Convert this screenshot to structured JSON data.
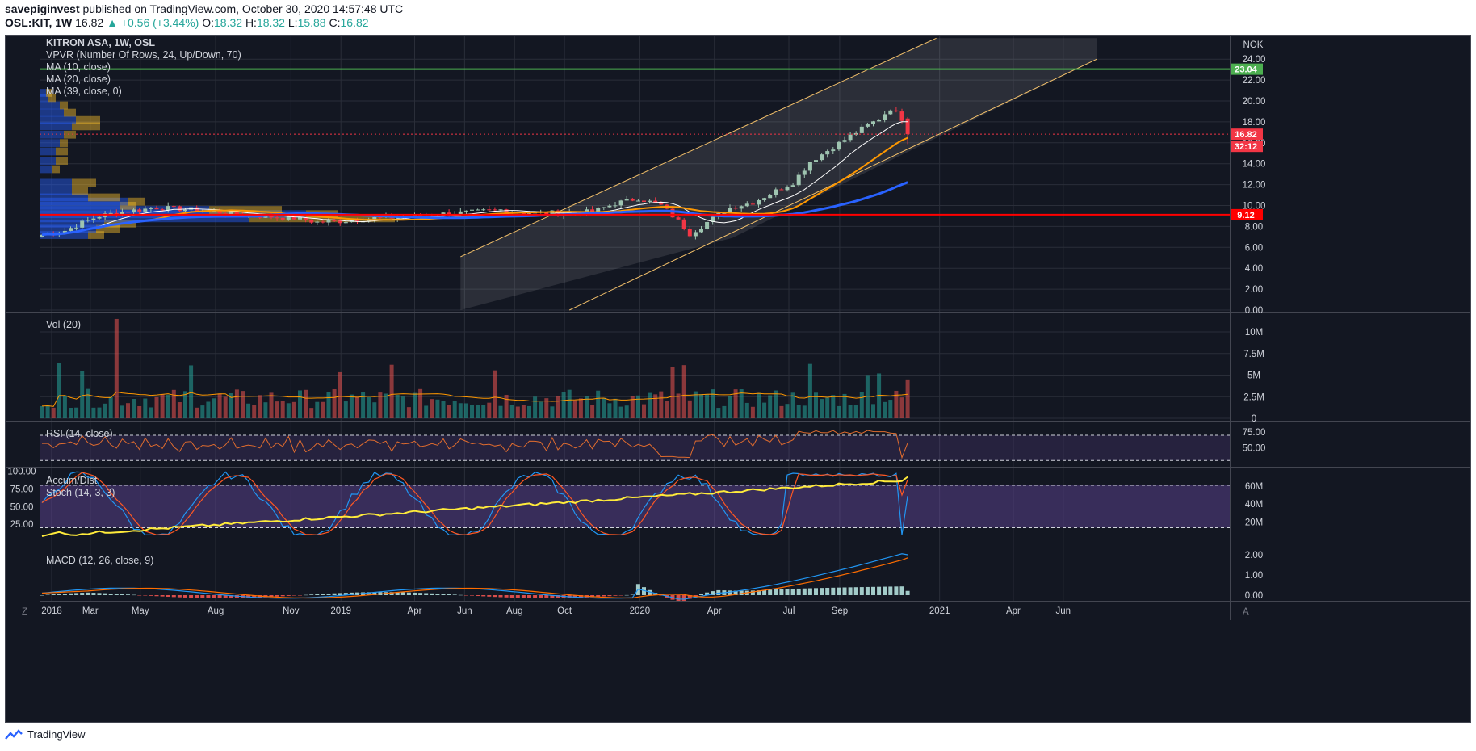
{
  "header": {
    "author": "savepiginvest",
    "published": "published on TradingView.com, October 30, 2020 14:57:48 UTC",
    "symbol": "OSL:KIT, 1W",
    "last": "16.82",
    "change": "▲ +0.56 (+3.44%)",
    "o_label": "O:",
    "o": "18.32",
    "h_label": "H:",
    "h": "18.32",
    "l_label": "L:",
    "l": "15.88",
    "c_label": "C:",
    "c": "16.82"
  },
  "footer": {
    "brand": "TradingView"
  },
  "legend": {
    "title": "KITRON ASA, 1W, OSL",
    "vpvr": "VPVR (Number Of Rows, 24, Up/Down, 70)",
    "ma10": "MA (10, close)",
    "ma20": "MA (20, close)",
    "ma39": "MA (39, close, 0)",
    "vol": "Vol (20)",
    "rsi": "RSI (14, close)",
    "accdist": "Accum/Dist",
    "stoch": "Stoch (14, 3, 3)",
    "macd": "MACD (12, 26, close, 9)"
  },
  "scale_buttons": {
    "left": "Z",
    "right": "A"
  },
  "colors": {
    "background": "#131722",
    "up": "#26a69a",
    "down": "#ef5350",
    "ma10": "#ffffff",
    "ma20": "#ff9800",
    "ma39": "#2962ff",
    "green_line": "#4caf50",
    "red_line": "#ff0000",
    "rsi_bg": "#2a1f44",
    "rsi_line": "#e06c2e",
    "stoch_k": "#2196f3",
    "stoch_d": "#ff5722",
    "accdist": "#ffeb3b",
    "macd": "#2196f3",
    "signal": "#ff6d00"
  },
  "chart_data": {
    "type": "candlestick",
    "symbol": "KITRON ASA",
    "interval": "1W",
    "x_ticks": [
      "2018",
      "Mar",
      "May",
      "Aug",
      "Nov",
      "2019",
      "Apr",
      "Jun",
      "Aug",
      "Oct",
      "2020",
      "Apr",
      "Jul",
      "Sep",
      "2021",
      "Apr",
      "Jun"
    ],
    "price": {
      "currency": "NOK",
      "y_ticks": [
        "0.00",
        "2.00",
        "4.00",
        "6.00",
        "8.00",
        "10.00",
        "12.00",
        "14.00",
        "16.00",
        "18.00",
        "20.00",
        "22.00",
        "24.00"
      ],
      "ylim": [
        0,
        25
      ],
      "last_close": 16.82,
      "countdown": "32:12",
      "resistance": 23.04,
      "support": 9.12,
      "ma39_last": 13.2,
      "channel": {
        "lower": [
          [
            "2019-09-30",
            9.3
          ],
          [
            "2020-03-23",
            6.9
          ],
          [
            "2021-07-12",
            24.0
          ]
        ],
        "upper": [
          [
            "2019-05-27",
            5.1
          ],
          [
            "2020-08-31",
            22.0
          ],
          [
            "2020-12-28",
            26.0
          ]
        ]
      }
    },
    "volume": {
      "y_ticks": [
        "0",
        "2.5M",
        "5M",
        "7.5M",
        "10M"
      ],
      "peak": 11.5,
      "last": 4.5,
      "unit": "M"
    },
    "rsi": {
      "y_ticks": [
        "50.00",
        "75.00"
      ],
      "upper_band": 70,
      "lower_band": 30,
      "last": 58
    },
    "stoch": {
      "y_ticks": [
        "25.00",
        "50.00",
        "75.00",
        "100.00"
      ],
      "last_k": 65,
      "last_d": 88
    },
    "accum_dist": {
      "y_ticks": [
        "20M",
        "40M",
        "60M"
      ],
      "last": 63
    },
    "macd": {
      "y_ticks": [
        "0.00",
        "1.00",
        "2.00"
      ],
      "last_macd": 2.0,
      "last_signal": 1.85
    }
  }
}
